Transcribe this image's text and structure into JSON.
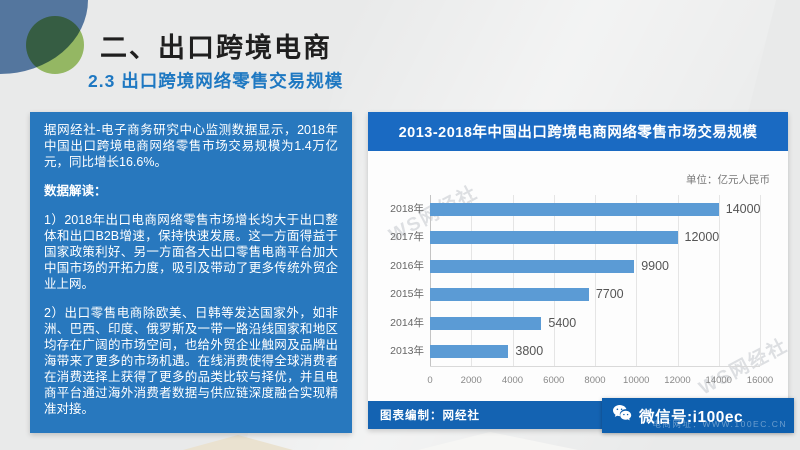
{
  "header": {
    "title": "二、出口跨境电商",
    "subtitle": "2.3 出口跨境网络零售交易规模"
  },
  "info_panel": {
    "intro": "据网经社-电子商务研究中心监测数据显示，2018年中国出口跨境电商网络零售市场交易规模为1.4万亿元，同比增长16.6%。",
    "section_label": "数据解读：",
    "point1": "1）2018年出口电商网络零售市场增长均大于出口整体和出口B2B增速，保持快速发展。这一方面得益于国家政策利好、另一方面各大出口零售电商平台加大中国市场的开拓力度，吸引及带动了更多传统外贸企业上网。",
    "point2": "2）出口零售电商除欧美、日韩等发达国家外，如非洲、巴西、印度、俄罗斯及一带一路沿线国家和地区均存在广阔的市场空间，也给外贸企业触网及品牌出海带来了更多的市场机遇。在线消费使得全球消费者在消费选择上获得了更多的品类比较与择优，并且电商平台通过海外消费者数据与供应链深度融合实现精准对接。"
  },
  "chart": {
    "title": "2013-2018年中国出口跨境电商网络零售市场交易规模",
    "unit": "单位：亿元人民币",
    "footer_left": "图表编制：网经社",
    "footer_right": "电商网址：WWW.100EC.CN",
    "watermark": "WS网经社"
  },
  "overlay": {
    "wechat_label": "微信号:i100ec"
  },
  "chart_data": {
    "type": "bar",
    "orientation": "horizontal",
    "title": "2013-2018年中国出口跨境电商网络零售市场交易规模",
    "categories": [
      "2018年",
      "2017年",
      "2016年",
      "2015年",
      "2014年",
      "2013年"
    ],
    "values": [
      14000,
      12000,
      9900,
      7700,
      5400,
      3800
    ],
    "unit": "亿元人民币",
    "xlabel": "",
    "ylabel": "",
    "xlim": [
      0,
      16000
    ],
    "x_ticks": [
      0,
      2000,
      4000,
      6000,
      8000,
      10000,
      12000,
      14000,
      16000
    ],
    "grid": true,
    "legend": false,
    "bar_color": "#5b9bd5"
  },
  "colors": {
    "panel_blue": "#2878be",
    "title_bar_blue": "#1a6ac2",
    "footer_blue": "#1463b2",
    "bar_blue": "#5b9bd5",
    "subtitle_blue": "#1e78c2",
    "corner_blue": "#54769e",
    "corner_green": "#9ac45f"
  }
}
